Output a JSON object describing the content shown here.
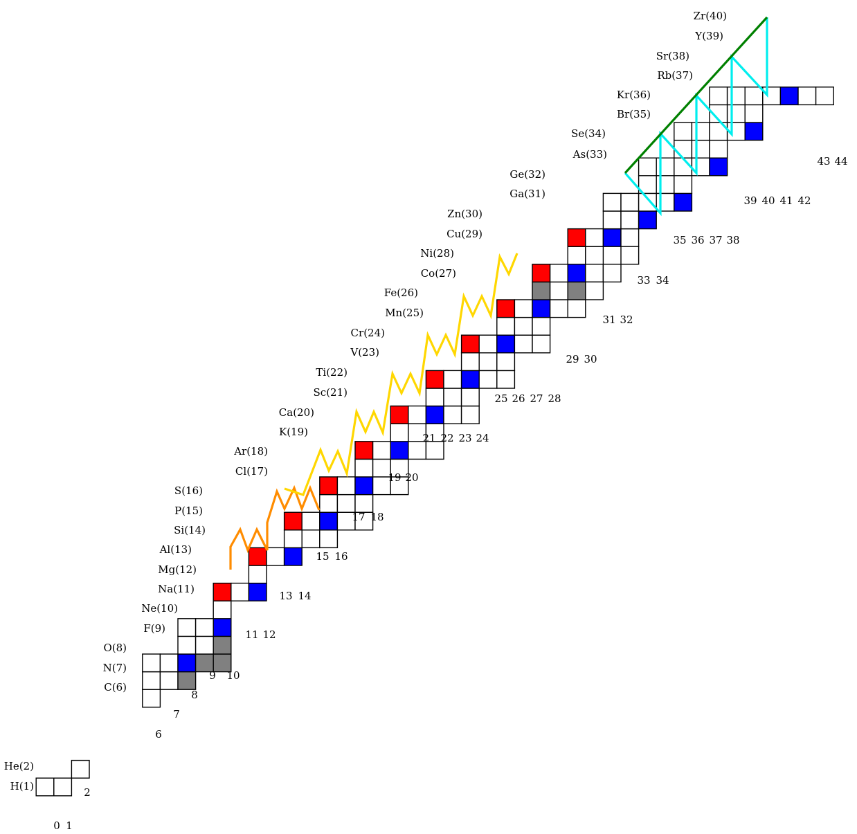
{
  "colors": {
    "blue": "#0000ff",
    "red": "#ff0000",
    "gray": "#808080",
    "white": "#ffffff",
    "orange": "#ff8c00",
    "yellow": "#ffd700",
    "cyan": "#00eeee",
    "green": "#008000"
  },
  "element_labels": [
    "H(1)",
    "He(2)",
    "C(6)",
    "N(7)",
    "O(8)",
    "F(9)",
    "Ne(10)",
    "Na(11)",
    "Mg(12)",
    "Al(13)",
    "Si(14)",
    "P(15)",
    "S(16)",
    "Cl(17)",
    "Ar(18)",
    "K(19)",
    "Ca(20)",
    "Sc(21)",
    "Ti(22)",
    "V(23)",
    "Cr(24)",
    "Mn(25)",
    "Fe(26)",
    "Co(27)",
    "Ni(28)",
    "Cu(29)",
    "Zn(30)",
    "Ga(31)",
    "Ge(32)",
    "As(33)",
    "Se(34)",
    "Br(35)",
    "Kr(36)",
    "Rb(37)",
    "Sr(38)",
    "Y(39)",
    "Zr(40)"
  ],
  "neutron_labels": [
    "0",
    "1",
    "2",
    "6",
    "7",
    "8",
    "9",
    "10",
    "11",
    "12",
    "13",
    "14",
    "15",
    "16",
    "17",
    "18",
    "19",
    "20",
    "21",
    "22",
    "23",
    "24",
    "25",
    "26",
    "27",
    "28",
    "29",
    "30",
    "31",
    "32",
    "33",
    "34",
    "35",
    "36",
    "37",
    "38",
    "39",
    "40",
    "41",
    "42",
    "43",
    "44"
  ]
}
